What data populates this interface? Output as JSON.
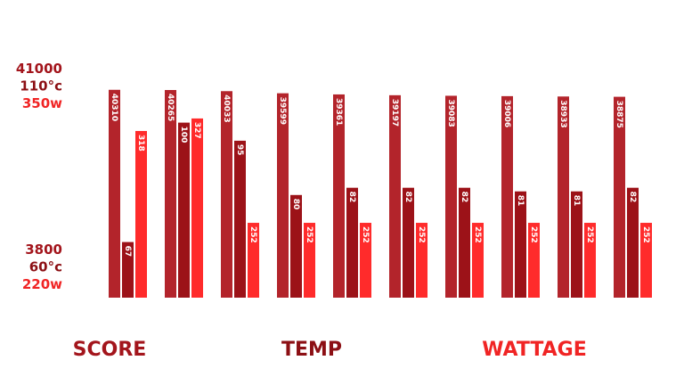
{
  "chart_data": {
    "type": "bar",
    "categories": [
      null,
      null,
      null,
      null,
      null,
      null,
      null,
      null,
      null,
      null
    ],
    "series": [
      {
        "name": "SCORE",
        "color": "#b3242b",
        "label_color": "#a3151c",
        "values": [
          40310,
          40265,
          40033,
          39599,
          39361,
          39197,
          39083,
          39006,
          38933,
          38875
        ],
        "ylim": [
          3800,
          41000
        ],
        "yticks": [
          3800,
          41000
        ]
      },
      {
        "name": "TEMP",
        "color": "#9c1218",
        "label_color": "#8c0f14",
        "values": [
          67,
          100,
          95,
          80,
          82,
          82,
          82,
          81,
          81,
          82
        ],
        "ylim": [
          60,
          110
        ],
        "yticks": [
          {
            "value": 60,
            "label": "60°c"
          },
          {
            "value": 110,
            "label": "110°c"
          }
        ]
      },
      {
        "name": "WATTAGE",
        "color": "#ff2b2b",
        "label_color": "#f02424",
        "values": [
          318,
          327,
          252,
          252,
          252,
          252,
          252,
          252,
          252,
          252
        ],
        "ylim": [
          220,
          350
        ],
        "yticks": [
          {
            "value": 220,
            "label": "220w"
          },
          {
            "value": 350,
            "label": "350w"
          }
        ]
      }
    ]
  }
}
